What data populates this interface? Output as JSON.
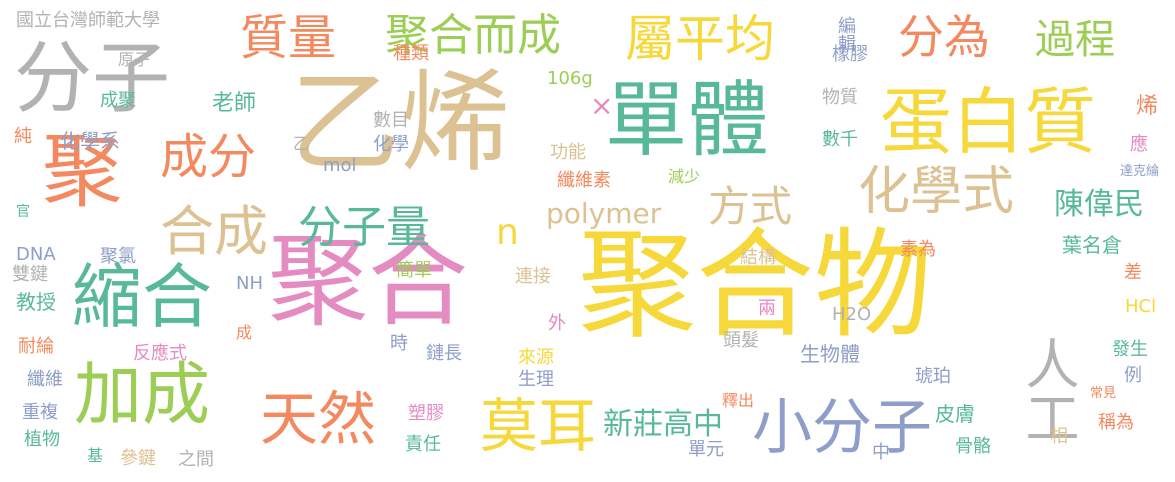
{
  "colors": {
    "yellow": "#f6d83a",
    "tan": "#dcc192",
    "teal": "#58b99a",
    "orange": "#f4895f",
    "pink": "#e48bc2",
    "green": "#9cce55",
    "gray": "#b2b2b2",
    "blue": "#8e9ec9"
  },
  "words": [
    {
      "id": "w-juhewu",
      "text": "聚合物",
      "color": "#f6d83a"
    },
    {
      "id": "w-yixi",
      "text": "乙烯",
      "color": "#dcc192"
    },
    {
      "id": "w-juhe",
      "text": "聚合",
      "color": "#e48bc2"
    },
    {
      "id": "w-danti",
      "text": "單體",
      "color": "#58b99a"
    },
    {
      "id": "w-fenzi",
      "text": "分子",
      "color": "#b2b2b2"
    },
    {
      "id": "w-danbaizhi",
      "text": "蛋白質",
      "color": "#f6d83a"
    },
    {
      "id": "w-ju",
      "text": "聚",
      "color": "#f4895f"
    },
    {
      "id": "w-jiacheng",
      "text": "加成",
      "color": "#9cce55"
    },
    {
      "id": "w-suohe",
      "text": "縮合",
      "color": "#58b99a"
    },
    {
      "id": "w-xiaofenzi",
      "text": "小分子",
      "color": "#8e9ec9"
    },
    {
      "id": "w-tianran",
      "text": "天然",
      "color": "#f4895f"
    },
    {
      "id": "w-moer",
      "text": "莫耳",
      "color": "#f6d83a"
    },
    {
      "id": "w-rengong",
      "text": "人工",
      "color": "#b2b2b2"
    },
    {
      "id": "w-shupingjun",
      "text": "屬平均",
      "color": "#f6d83a"
    },
    {
      "id": "w-fenwei",
      "text": "分為",
      "color": "#f4895f"
    },
    {
      "id": "w-guocheng",
      "text": "過程",
      "color": "#9cce55"
    },
    {
      "id": "w-zhiliang",
      "text": "質量",
      "color": "#f4895f"
    },
    {
      "id": "w-juheerchen",
      "text": "聚合而成",
      "color": "#9cce55"
    },
    {
      "id": "w-chengfen",
      "text": "成分",
      "color": "#f4895f"
    },
    {
      "id": "w-hecheng",
      "text": "合成",
      "color": "#dcc192"
    },
    {
      "id": "w-fenziliang",
      "text": "分子量",
      "color": "#58b99a"
    },
    {
      "id": "w-huaxueshi",
      "text": "化學式",
      "color": "#dcc192"
    },
    {
      "id": "w-fangshi",
      "text": "方式",
      "color": "#dcc192"
    },
    {
      "id": "w-polymer",
      "text": "polymer",
      "color": "#dcc192"
    },
    {
      "id": "w-n",
      "text": "n",
      "color": "#f6d83a"
    },
    {
      "id": "w-x",
      "text": "×",
      "color": "#e48bc2"
    },
    {
      "id": "w-xinzhuang",
      "text": "新莊高中",
      "color": "#58b99a"
    },
    {
      "id": "w-chenweimin",
      "text": "陳偉民",
      "color": "#58b99a"
    },
    {
      "id": "w-yemingcang",
      "text": "葉名倉",
      "color": "#58b99a"
    },
    {
      "id": "w-laoshi",
      "text": "老師",
      "color": "#58b99a"
    },
    {
      "id": "w-ntnu",
      "text": "國立台灣師範大學",
      "color": "#b2b2b2"
    },
    {
      "id": "w-huaxuexi",
      "text": "化學系",
      "color": "#8e9ec9"
    },
    {
      "id": "w-yuanzi",
      "text": "原子",
      "color": "#b2b2b2"
    },
    {
      "id": "w-chengju",
      "text": "成聚",
      "color": "#58b99a"
    },
    {
      "id": "w-chun",
      "text": "純",
      "color": "#f4895f"
    },
    {
      "id": "w-zhonglei",
      "text": "種類",
      "color": "#f4895f"
    },
    {
      "id": "w-106g",
      "text": "106g",
      "color": "#9cce55"
    },
    {
      "id": "w-yi",
      "text": "乙",
      "color": "#b2b2b2"
    },
    {
      "id": "w-shumu",
      "text": "數目",
      "color": "#b2b2b2"
    },
    {
      "id": "w-huaxue",
      "text": "化學",
      "color": "#8e9ec9"
    },
    {
      "id": "w-mol",
      "text": "mol",
      "color": "#8e9ec9"
    },
    {
      "id": "w-gongneng",
      "text": "功能",
      "color": "#dcc192"
    },
    {
      "id": "w-xianweisu",
      "text": "纖維素",
      "color": "#f4895f"
    },
    {
      "id": "w-jianshao",
      "text": "減少",
      "color": "#9cce55"
    },
    {
      "id": "w-bianji",
      "text": "編輯",
      "color": "#8e9ec9"
    },
    {
      "id": "w-xiangjiao",
      "text": "橡膠",
      "color": "#8e9ec9"
    },
    {
      "id": "w-wuzhi",
      "text": "物質",
      "color": "#b2b2b2"
    },
    {
      "id": "w-shuqian",
      "text": "數千",
      "color": "#58b99a"
    },
    {
      "id": "w-xi",
      "text": "烯",
      "color": "#f4895f"
    },
    {
      "id": "w-ying",
      "text": "應",
      "color": "#e48bc2"
    },
    {
      "id": "w-dakelun",
      "text": "達克綸",
      "color": "#8e9ec9"
    },
    {
      "id": "w-guan",
      "text": "官",
      "color": "#58b99a"
    },
    {
      "id": "w-dna",
      "text": "DNA",
      "color": "#8e9ec9"
    },
    {
      "id": "w-shuangjian",
      "text": "雙鍵",
      "color": "#b2b2b2"
    },
    {
      "id": "w-juqing",
      "text": "聚氯",
      "color": "#8e9ec9"
    },
    {
      "id": "w-jiaoshou",
      "text": "教授",
      "color": "#58b99a"
    },
    {
      "id": "w-nh",
      "text": "NH",
      "color": "#8e9ec9"
    },
    {
      "id": "w-jiandan",
      "text": "簡單",
      "color": "#9cce55"
    },
    {
      "id": "w-lianjie",
      "text": "連接",
      "color": "#dcc192"
    },
    {
      "id": "w-jiegou",
      "text": "結構",
      "color": "#dcc192"
    },
    {
      "id": "w-suwei",
      "text": "素為",
      "color": "#f4895f"
    },
    {
      "id": "w-cha",
      "text": "差",
      "color": "#f4895f"
    },
    {
      "id": "w-hcl",
      "text": "HCl",
      "color": "#f6d83a"
    },
    {
      "id": "w-h2o",
      "text": "H2O",
      "color": "#b2b2b2"
    },
    {
      "id": "w-liang",
      "text": "兩",
      "color": "#e48bc2"
    },
    {
      "id": "w-wai",
      "text": "外",
      "color": "#e48bc2"
    },
    {
      "id": "w-cheng",
      "text": "成",
      "color": "#f4895f"
    },
    {
      "id": "w-nailun",
      "text": "耐綸",
      "color": "#f4895f"
    },
    {
      "id": "w-fanyingshi",
      "text": "反應式",
      "color": "#e48bc2"
    },
    {
      "id": "w-shi",
      "text": "時",
      "color": "#8e9ec9"
    },
    {
      "id": "w-lianchang",
      "text": "鏈長",
      "color": "#8e9ec9"
    },
    {
      "id": "w-toufa",
      "text": "頭髮",
      "color": "#b2b2b2"
    },
    {
      "id": "w-shengwuti",
      "text": "生物體",
      "color": "#8e9ec9"
    },
    {
      "id": "w-fasheng",
      "text": "發生",
      "color": "#58b99a"
    },
    {
      "id": "w-li",
      "text": "例",
      "color": "#8e9ec9"
    },
    {
      "id": "w-xianwei",
      "text": "纖維",
      "color": "#8e9ec9"
    },
    {
      "id": "w-laiyuan",
      "text": "來源",
      "color": "#f6d83a"
    },
    {
      "id": "w-shengli",
      "text": "生理",
      "color": "#8e9ec9"
    },
    {
      "id": "w-hupo",
      "text": "琥珀",
      "color": "#8e9ec9"
    },
    {
      "id": "w-changjian",
      "text": "常見",
      "color": "#f4895f"
    },
    {
      "id": "w-chongfu",
      "text": "重複",
      "color": "#8e9ec9"
    },
    {
      "id": "w-suojiao",
      "text": "塑膠",
      "color": "#e48bc2"
    },
    {
      "id": "w-shichu",
      "text": "釋出",
      "color": "#f4895f"
    },
    {
      "id": "w-pifu",
      "text": "皮膚",
      "color": "#58b99a"
    },
    {
      "id": "w-chengwei",
      "text": "稱為",
      "color": "#f4895f"
    },
    {
      "id": "w-zhiwu",
      "text": "植物",
      "color": "#58b99a"
    },
    {
      "id": "w-zeren",
      "text": "責任",
      "color": "#58b99a"
    },
    {
      "id": "w-danyuan",
      "text": "單元",
      "color": "#8e9ec9"
    },
    {
      "id": "w-xiang",
      "text": "相",
      "color": "#dcc192"
    },
    {
      "id": "w-guge",
      "text": "骨骼",
      "color": "#58b99a"
    },
    {
      "id": "w-ji",
      "text": "基",
      "color": "#58b99a"
    },
    {
      "id": "w-canjian",
      "text": "參鍵",
      "color": "#dcc192"
    },
    {
      "id": "w-zhijian",
      "text": "之間",
      "color": "#b2b2b2"
    },
    {
      "id": "w-zhong",
      "text": "中",
      "color": "#8e9ec9"
    }
  ]
}
